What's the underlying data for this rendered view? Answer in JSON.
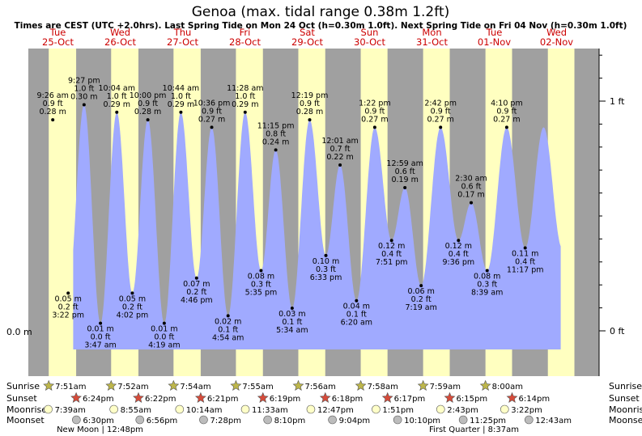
{
  "chart_data": {
    "type": "area",
    "title": "Genoa (max. tidal range 0.38m 1.2ft)",
    "subtitle": "Times are CEST (UTC +2.0hrs). Last Spring Tide on Mon 24 Oct (h=0.30m 1.0ft). Next Spring Tide on Fri 04 Nov (h=0.30m 1.0ft)",
    "days": [
      {
        "dow": "Tue",
        "date": "25-Oct"
      },
      {
        "dow": "Wed",
        "date": "26-Oct"
      },
      {
        "dow": "Thu",
        "date": "27-Oct"
      },
      {
        "dow": "Fri",
        "date": "28-Oct"
      },
      {
        "dow": "Sat",
        "date": "29-Oct"
      },
      {
        "dow": "Sun",
        "date": "30-Oct"
      },
      {
        "dow": "Mon",
        "date": "31-Oct"
      },
      {
        "dow": "Tue",
        "date": "01-Nov"
      },
      {
        "dow": "Wed",
        "date": "02-Nov"
      }
    ],
    "y_axis_left": {
      "label": "0.0 m"
    },
    "y_axis_right": {
      "labels": [
        "0 ft",
        "1 ft"
      ]
    },
    "tides": [
      {
        "t": 0.392,
        "time": "9:26 am",
        "ft": "0.9 ft",
        "m": "0.28 m",
        "h": 0.28,
        "type": "high"
      },
      {
        "t": 0.639,
        "time": "3:22 pm",
        "ft": "0.2 ft",
        "m": "0.05 m",
        "h": 0.05,
        "type": "low"
      },
      {
        "t": 0.894,
        "time": "9:27 pm",
        "ft": "1.0 ft",
        "m": "0.30 m",
        "h": 0.3,
        "type": "high"
      },
      {
        "t": 1.157,
        "time": "3:47 am",
        "ft": "0.0 ft",
        "m": "0.01 m",
        "h": 0.01,
        "type": "low"
      },
      {
        "t": 1.419,
        "time": "10:04 am",
        "ft": "1.0 ft",
        "m": "0.29 m",
        "h": 0.29,
        "type": "high"
      },
      {
        "t": 1.668,
        "time": "4:02 pm",
        "ft": "0.2 ft",
        "m": "0.05 m",
        "h": 0.05,
        "type": "low"
      },
      {
        "t": 1.917,
        "time": "10:00 pm",
        "ft": "0.9 ft",
        "m": "0.28 m",
        "h": 0.28,
        "type": "high"
      },
      {
        "t": 2.18,
        "time": "4:19 am",
        "ft": "0.0 ft",
        "m": "0.01 m",
        "h": 0.01,
        "type": "low"
      },
      {
        "t": 2.447,
        "time": "10:44 am",
        "ft": "1.0 ft",
        "m": "0.29 m",
        "h": 0.29,
        "type": "high"
      },
      {
        "t": 2.699,
        "time": "4:46 pm",
        "ft": "0.2 ft",
        "m": "0.07 m",
        "h": 0.07,
        "type": "low"
      },
      {
        "t": 2.942,
        "time": "10:36 pm",
        "ft": "0.9 ft",
        "m": "0.27 m",
        "h": 0.27,
        "type": "high"
      },
      {
        "t": 3.204,
        "time": "4:54 am",
        "ft": "0.1 ft",
        "m": "0.02 m",
        "h": 0.02,
        "type": "low"
      },
      {
        "t": 3.478,
        "time": "11:28 am",
        "ft": "1.0 ft",
        "m": "0.29 m",
        "h": 0.29,
        "type": "high"
      },
      {
        "t": 3.733,
        "time": "5:35 pm",
        "ft": "0.3 ft",
        "m": "0.08 m",
        "h": 0.08,
        "type": "low"
      },
      {
        "t": 3.969,
        "time": "11:15 pm",
        "ft": "0.8 ft",
        "m": "0.24 m",
        "h": 0.24,
        "type": "high"
      },
      {
        "t": 4.232,
        "time": "5:34 am",
        "ft": "0.1 ft",
        "m": "0.03 m",
        "h": 0.03,
        "type": "low"
      },
      {
        "t": 4.513,
        "time": "12:19 pm",
        "ft": "0.9 ft",
        "m": "0.28 m",
        "h": 0.28,
        "type": "high"
      },
      {
        "t": 4.773,
        "time": "6:33 pm",
        "ft": "0.3 ft",
        "m": "0.10 m",
        "h": 0.1,
        "type": "low"
      },
      {
        "t": 5.001,
        "time": "12:01 am",
        "ft": "0.7 ft",
        "m": "0.22 m",
        "h": 0.22,
        "type": "high"
      },
      {
        "t": 5.264,
        "time": "6:20 am",
        "ft": "0.1 ft",
        "m": "0.04 m",
        "h": 0.04,
        "type": "low"
      },
      {
        "t": 5.557,
        "time": "1:22 pm",
        "ft": "0.9 ft",
        "m": "0.27 m",
        "h": 0.27,
        "type": "high"
      },
      {
        "t": 5.827,
        "time": "7:51 pm",
        "ft": "0.4 ft",
        "m": "0.12 m",
        "h": 0.12,
        "type": "low"
      },
      {
        "t": 6.041,
        "time": "12:59 am",
        "ft": "0.6 ft",
        "m": "0.19 m",
        "h": 0.19,
        "type": "high"
      },
      {
        "t": 6.301,
        "time": "7:19 am",
        "ft": "0.2 ft",
        "m": "0.06 m",
        "h": 0.06,
        "type": "low"
      },
      {
        "t": 6.613,
        "time": "2:42 pm",
        "ft": "0.9 ft",
        "m": "0.27 m",
        "h": 0.27,
        "type": "high"
      },
      {
        "t": 6.9,
        "time": "9:36 pm",
        "ft": "0.4 ft",
        "m": "0.12 m",
        "h": 0.12,
        "type": "low"
      },
      {
        "t": 7.104,
        "time": "2:30 am",
        "ft": "0.6 ft",
        "m": "0.17 m",
        "h": 0.17,
        "type": "high"
      },
      {
        "t": 7.36,
        "time": "8:39 am",
        "ft": "0.3 ft",
        "m": "0.08 m",
        "h": 0.08,
        "type": "low"
      },
      {
        "t": 7.674,
        "time": "4:10 pm",
        "ft": "0.9 ft",
        "m": "0.27 m",
        "h": 0.27,
        "type": "high"
      },
      {
        "t": 7.97,
        "time": "11:17 pm",
        "ft": "0.4 ft",
        "m": "0.11 m",
        "h": 0.11,
        "type": "low"
      }
    ],
    "daylight": [
      {
        "rise": 0.327,
        "set": 0.767
      },
      {
        "rise": 1.328,
        "set": 1.766
      },
      {
        "rise": 2.329,
        "set": 2.765
      },
      {
        "rise": 3.33,
        "set": 3.763
      },
      {
        "rise": 4.331,
        "set": 4.763
      },
      {
        "rise": 5.332,
        "set": 5.762
      },
      {
        "rise": 6.333,
        "set": 6.76
      },
      {
        "rise": 7.333,
        "set": 7.76
      },
      {
        "rise": 8.334,
        "set": 8.76
      }
    ],
    "astro": {
      "row_labels": {
        "sunrise": "Sunrise",
        "sunset": "Sunset",
        "moonrise": "Moonrise",
        "moonset": "Moonset"
      },
      "sunrise": [
        {
          "t": 0.327,
          "time": "7:51am"
        },
        {
          "t": 1.328,
          "time": "7:52am"
        },
        {
          "t": 2.329,
          "time": "7:54am"
        },
        {
          "t": 3.33,
          "time": "7:55am"
        },
        {
          "t": 4.331,
          "time": "7:56am"
        },
        {
          "t": 5.332,
          "time": "7:58am"
        },
        {
          "t": 6.333,
          "time": "7:59am"
        },
        {
          "t": 7.333,
          "time": "8:00am"
        }
      ],
      "sunset": [
        {
          "t": 0.767,
          "time": "6:24pm"
        },
        {
          "t": 1.766,
          "time": "6:22pm"
        },
        {
          "t": 2.765,
          "time": "6:21pm"
        },
        {
          "t": 3.763,
          "time": "6:19pm"
        },
        {
          "t": 4.763,
          "time": "6:18pm"
        },
        {
          "t": 5.762,
          "time": "6:17pm"
        },
        {
          "t": 6.76,
          "time": "6:15pm"
        },
        {
          "t": 7.76,
          "time": "6:14pm"
        }
      ],
      "moonrise": [
        {
          "t": 0.319,
          "time": "7:39am"
        },
        {
          "t": 1.372,
          "time": "8:55am"
        },
        {
          "t": 2.426,
          "time": "10:14am"
        },
        {
          "t": 3.481,
          "time": "11:33am"
        },
        {
          "t": 4.532,
          "time": "12:47pm"
        },
        {
          "t": 5.577,
          "time": "1:51pm"
        },
        {
          "t": 6.614,
          "time": "2:43pm"
        },
        {
          "t": 7.64,
          "time": "3:22pm"
        }
      ],
      "moonset": [
        {
          "t": 0.771,
          "time": "6:30pm"
        },
        {
          "t": 1.789,
          "time": "6:56pm"
        },
        {
          "t": 2.811,
          "time": "7:28pm"
        },
        {
          "t": 3.84,
          "time": "8:10pm"
        },
        {
          "t": 4.878,
          "time": "9:04pm"
        },
        {
          "t": 5.924,
          "time": "10:10pm"
        },
        {
          "t": 6.976,
          "time": "11:25pm"
        },
        {
          "t": 8.03,
          "time": "12:43am"
        }
      ],
      "phases": [
        {
          "t": 0.5,
          "label": "New Moon",
          "time": "12:48pm"
        },
        {
          "t": 6.5,
          "label": "First Quarter",
          "time": "8:37am"
        }
      ]
    },
    "colors": {
      "night": "#a0a0a0",
      "day": "#ffffc0",
      "water": "#a0aaff",
      "day_text": "#cc0000",
      "sun_rise_star": "#bdb64a",
      "sun_set_star": "#d64b3a",
      "moon_rise": "#ffffc8",
      "moon_set": "#bcbcbc"
    }
  }
}
